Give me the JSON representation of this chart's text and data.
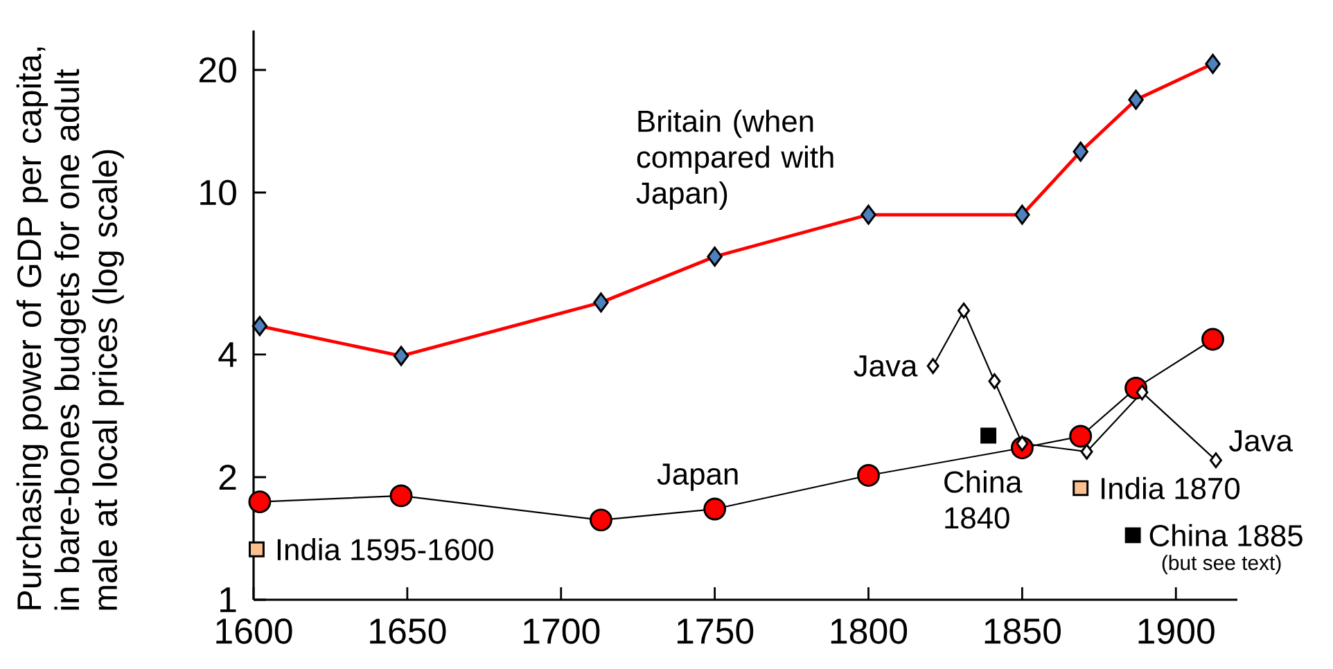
{
  "chart_data": {
    "type": "line",
    "ylabel": "Purchasing power of GDP per capita, in bare-bones budgets for one adult male at local prices (log scale)",
    "log": "y",
    "grid": false,
    "xlim": [
      1600,
      1920
    ],
    "xticks": [
      1600,
      1650,
      1700,
      1750,
      1800,
      1850,
      1900
    ],
    "ylim": [
      1,
      25
    ],
    "yticks": [
      1,
      2,
      4,
      10,
      20
    ],
    "series": [
      {
        "name": "Britain (when compared with Japan)",
        "marker": "diamond",
        "color": "#ff0000",
        "colors": [
          "#4f81bd",
          "#4f81bd",
          "#4f81bd",
          "#4f81bd",
          "#4f81bd",
          "#4f81bd",
          "#4f81bd",
          "#4f81bd",
          "#4f81bd"
        ],
        "x": [
          1602,
          1648,
          1713,
          1750,
          1800,
          1850,
          1869,
          1887,
          1912
        ],
        "values": [
          4.7,
          3.97,
          5.37,
          6.96,
          8.82,
          8.82,
          12.6,
          16.9,
          20.7
        ]
      },
      {
        "name": "Japan",
        "marker": "circle",
        "color": "#000000",
        "colors": [
          "#ff0000",
          "#ff0000",
          "#ff0000",
          "#ff0000",
          "#ff0000",
          "#ff0000",
          "#ff0000",
          "#ff0000",
          "#ff0000"
        ],
        "x": [
          1602,
          1648,
          1713,
          1750,
          1800,
          1850,
          1869,
          1887,
          1912
        ],
        "values": [
          1.74,
          1.8,
          1.57,
          1.67,
          2.02,
          2.36,
          2.52,
          3.31,
          4.36
        ]
      },
      {
        "name": "Java",
        "marker": "diamond",
        "color": "#000000",
        "colors": [
          "#ffffff",
          "#ffffff",
          "#ffffff",
          "#ffffff",
          "#ffffff",
          "#ffffff",
          "#ffffff"
        ],
        "x": [
          1821,
          1831,
          1841,
          1850,
          1871,
          1889,
          1913
        ],
        "values": [
          3.75,
          5.13,
          3.44,
          2.42,
          2.31,
          3.23,
          2.2
        ]
      },
      {
        "name": "India 1595-1600",
        "type": "scatter",
        "marker": "square",
        "color": "#000000",
        "colors": [
          "#fac090"
        ],
        "x": [
          1601
        ],
        "values": [
          1.33
        ]
      },
      {
        "name": "China 1840",
        "type": "scatter",
        "marker": "square",
        "color": "#000000",
        "colors": [
          "#000000"
        ],
        "x": [
          1839
        ],
        "values": [
          2.53
        ]
      },
      {
        "name": "India 1870",
        "type": "scatter",
        "marker": "square",
        "color": "#000000",
        "colors": [
          "#fac090"
        ],
        "x": [
          1869
        ],
        "values": [
          1.88
        ]
      },
      {
        "name": "China 1885",
        "type": "scatter",
        "marker": "square",
        "color": "#000000",
        "colors": [
          "#000000"
        ],
        "x": [
          1886
        ],
        "values": [
          1.44
        ]
      }
    ],
    "annotations": [
      "(but see text)"
    ]
  }
}
